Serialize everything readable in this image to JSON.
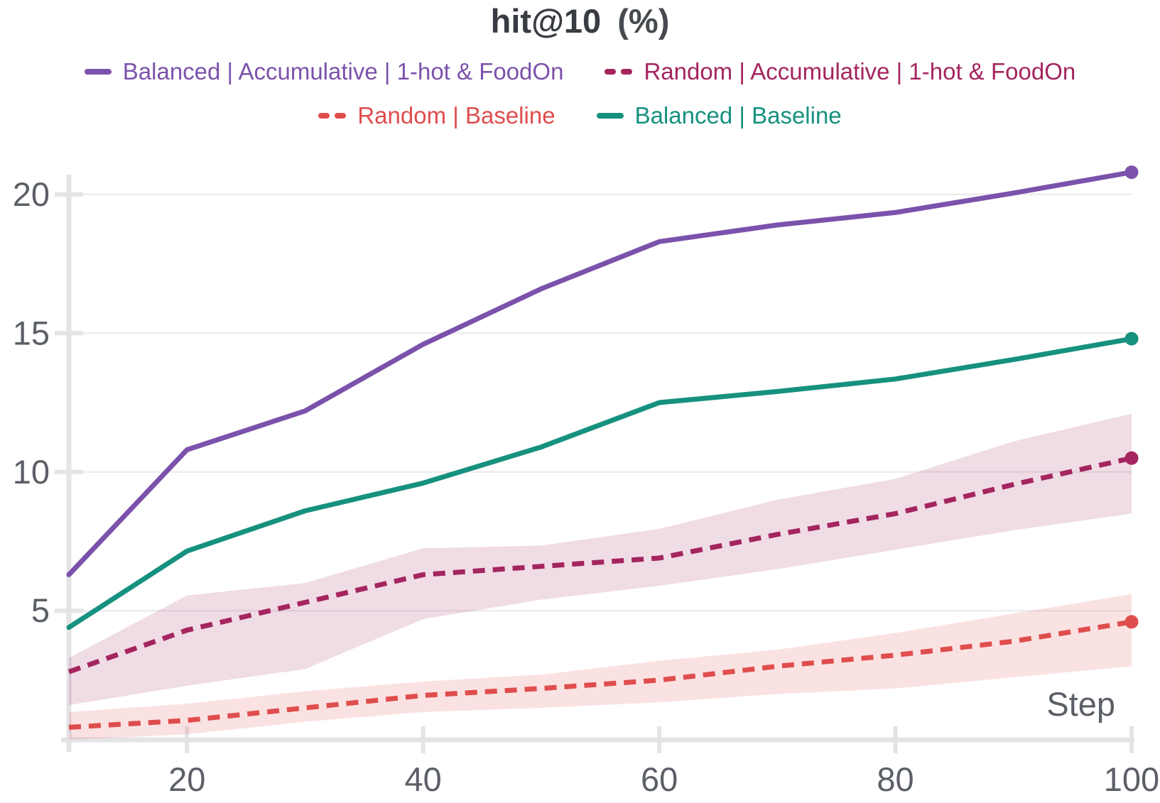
{
  "chart_data": {
    "type": "line",
    "title": "hit@10 (%)",
    "title_main": "hit@10",
    "title_unit": "(%)",
    "xlabel": "Step",
    "x": [
      10,
      20,
      30,
      40,
      50,
      60,
      70,
      80,
      90,
      100
    ],
    "xticks": [
      20,
      40,
      60,
      80,
      100
    ],
    "yticks": [
      5,
      10,
      15,
      20
    ],
    "xlim": [
      10,
      100
    ],
    "ylim": [
      0.35,
      21.25
    ],
    "grid": "horizontal-only",
    "legend_position": "top",
    "legend_rows": [
      [
        0,
        1
      ],
      [
        2,
        3
      ]
    ],
    "series": [
      {
        "name": "Balanced | Accumulative | 1-hot & FoodOn",
        "color": "#7b52ab",
        "line_style": "solid",
        "end_dot": true,
        "values": [
          6.3,
          10.8,
          12.2,
          14.6,
          16.6,
          18.3,
          18.9,
          19.35,
          20.05,
          20.8
        ]
      },
      {
        "name": "Random | Accumulative | 1-hot & FoodOn",
        "color": "#a4255f",
        "line_style": "dashed",
        "end_dot": true,
        "values": [
          2.8,
          4.3,
          5.3,
          6.3,
          6.6,
          6.9,
          7.75,
          8.5,
          9.55,
          10.5
        ],
        "band_upper": [
          3.3,
          5.55,
          6.0,
          7.25,
          7.35,
          7.95,
          9.0,
          9.75,
          11.1,
          12.1
        ],
        "band_lower": [
          1.6,
          2.3,
          2.9,
          4.7,
          5.4,
          5.9,
          6.5,
          7.2,
          7.9,
          8.5
        ]
      },
      {
        "name": "Random | Baseline",
        "color": "#e04d4d",
        "line_style": "dashed",
        "end_dot": true,
        "values": [
          0.8,
          1.05,
          1.5,
          1.95,
          2.2,
          2.5,
          3.0,
          3.4,
          3.9,
          4.6
        ],
        "band_upper": [
          1.35,
          1.65,
          2.1,
          2.45,
          2.7,
          3.2,
          3.6,
          4.2,
          4.9,
          5.6
        ],
        "band_lower": [
          0.35,
          0.55,
          1.0,
          1.35,
          1.5,
          1.7,
          2.0,
          2.2,
          2.6,
          3.0
        ]
      },
      {
        "name": "Balanced | Baseline",
        "color": "#16917f",
        "line_style": "solid",
        "end_dot": true,
        "values": [
          4.4,
          7.15,
          8.6,
          9.6,
          10.9,
          12.5,
          12.9,
          13.35,
          14.05,
          14.8
        ]
      }
    ],
    "style": {
      "grid_color": "#ededef",
      "spine_color": "#e4e4e7",
      "tick_text_color": "#5b5f66",
      "title_color": "#383c42",
      "band_opacity": 0.16
    }
  }
}
